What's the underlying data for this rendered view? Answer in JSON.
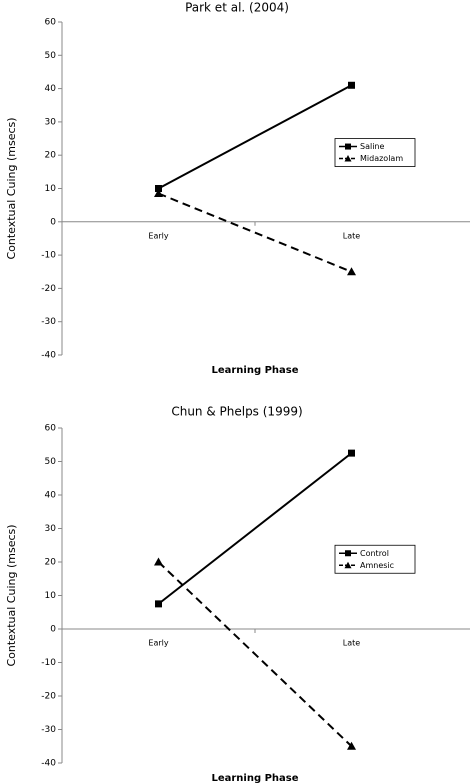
{
  "chart_data": [
    {
      "type": "line",
      "title": "Park et al. (2004)",
      "x_label": "Learning Phase",
      "y_label": "Contextual Cuing (msecs)",
      "categories": [
        "Early",
        "Late"
      ],
      "series": [
        {
          "name": "Saline",
          "color": "#000000",
          "linestyle": "solid",
          "marker": "square",
          "values": [
            10,
            41
          ]
        },
        {
          "name": "Midazolam",
          "color": "#000000",
          "linestyle": "dashed",
          "marker": "triangle",
          "values": [
            8.5,
            -15
          ]
        }
      ],
      "ylim": [
        -40,
        60
      ],
      "yticks": [
        -40,
        -30,
        -20,
        -10,
        0,
        10,
        20,
        30,
        40,
        50,
        60
      ],
      "legend": "right"
    },
    {
      "type": "line",
      "title": "Chun & Phelps (1999)",
      "x_label": "Learning Phase",
      "y_label": "Contextual Cuing (msecs)",
      "categories": [
        "Early",
        "Late"
      ],
      "series": [
        {
          "name": "Control",
          "color": "#000000",
          "linestyle": "solid",
          "marker": "square",
          "values": [
            7.5,
            52.5
          ]
        },
        {
          "name": "Amnesic",
          "color": "#000000",
          "linestyle": "dashed",
          "marker": "triangle",
          "values": [
            20,
            -35
          ]
        }
      ],
      "ylim": [
        -40,
        60
      ],
      "yticks": [
        -40,
        -30,
        -20,
        -10,
        0,
        10,
        20,
        30,
        40,
        50,
        60
      ],
      "legend": "right"
    }
  ]
}
